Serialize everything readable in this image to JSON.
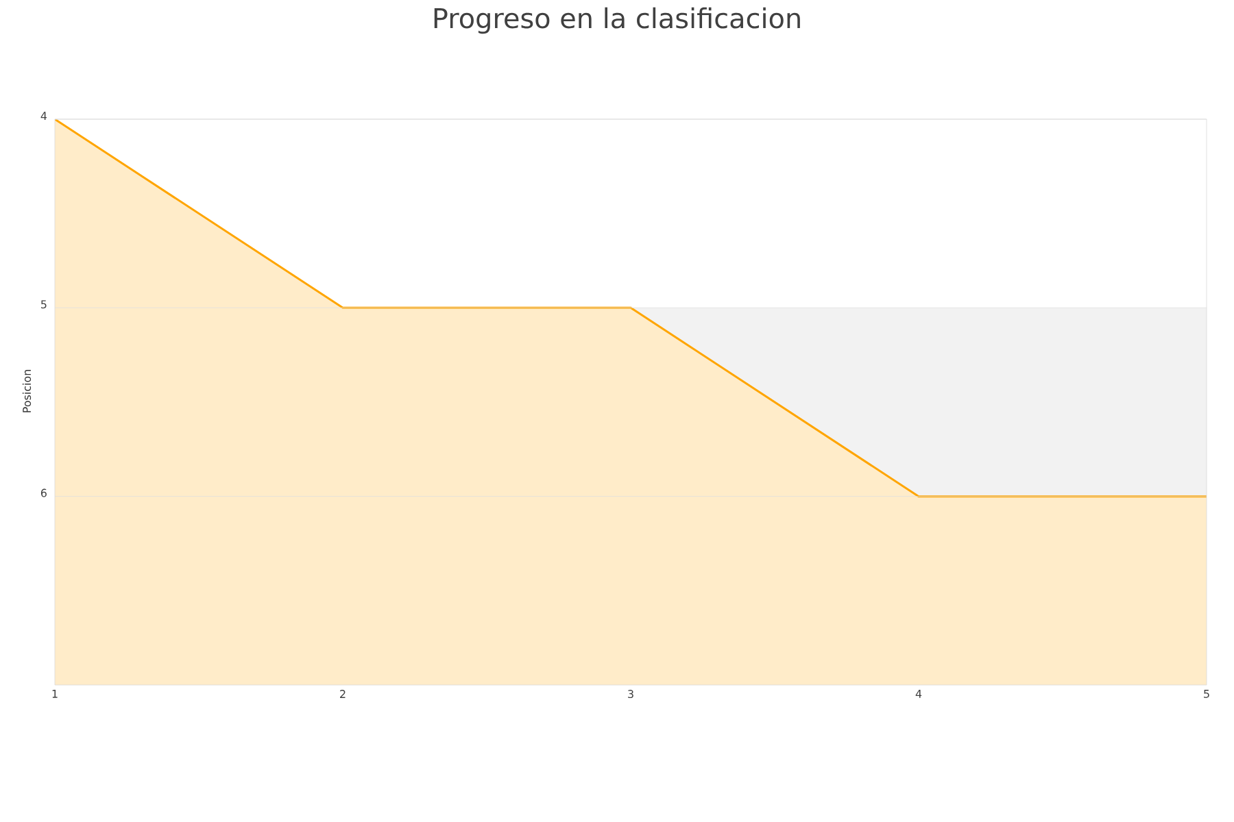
{
  "chart_data": {
    "type": "area",
    "title": "Progreso en la clasificacion",
    "ylabel": "Posicion",
    "x": [
      1,
      2,
      3,
      4,
      5
    ],
    "series": [
      {
        "color": "#ffa500",
        "values": [
          4,
          5,
          5,
          6,
          6
        ]
      }
    ],
    "xlim": [
      1,
      5
    ],
    "xticks": [
      1,
      2,
      3,
      4,
      5
    ],
    "ylim": [
      7,
      4
    ],
    "yticks": [
      4,
      5,
      6
    ],
    "grid": "y",
    "bands": [
      {
        "axis": "y",
        "from": 5,
        "to": 6,
        "color": "#f2f2f2"
      }
    ]
  }
}
